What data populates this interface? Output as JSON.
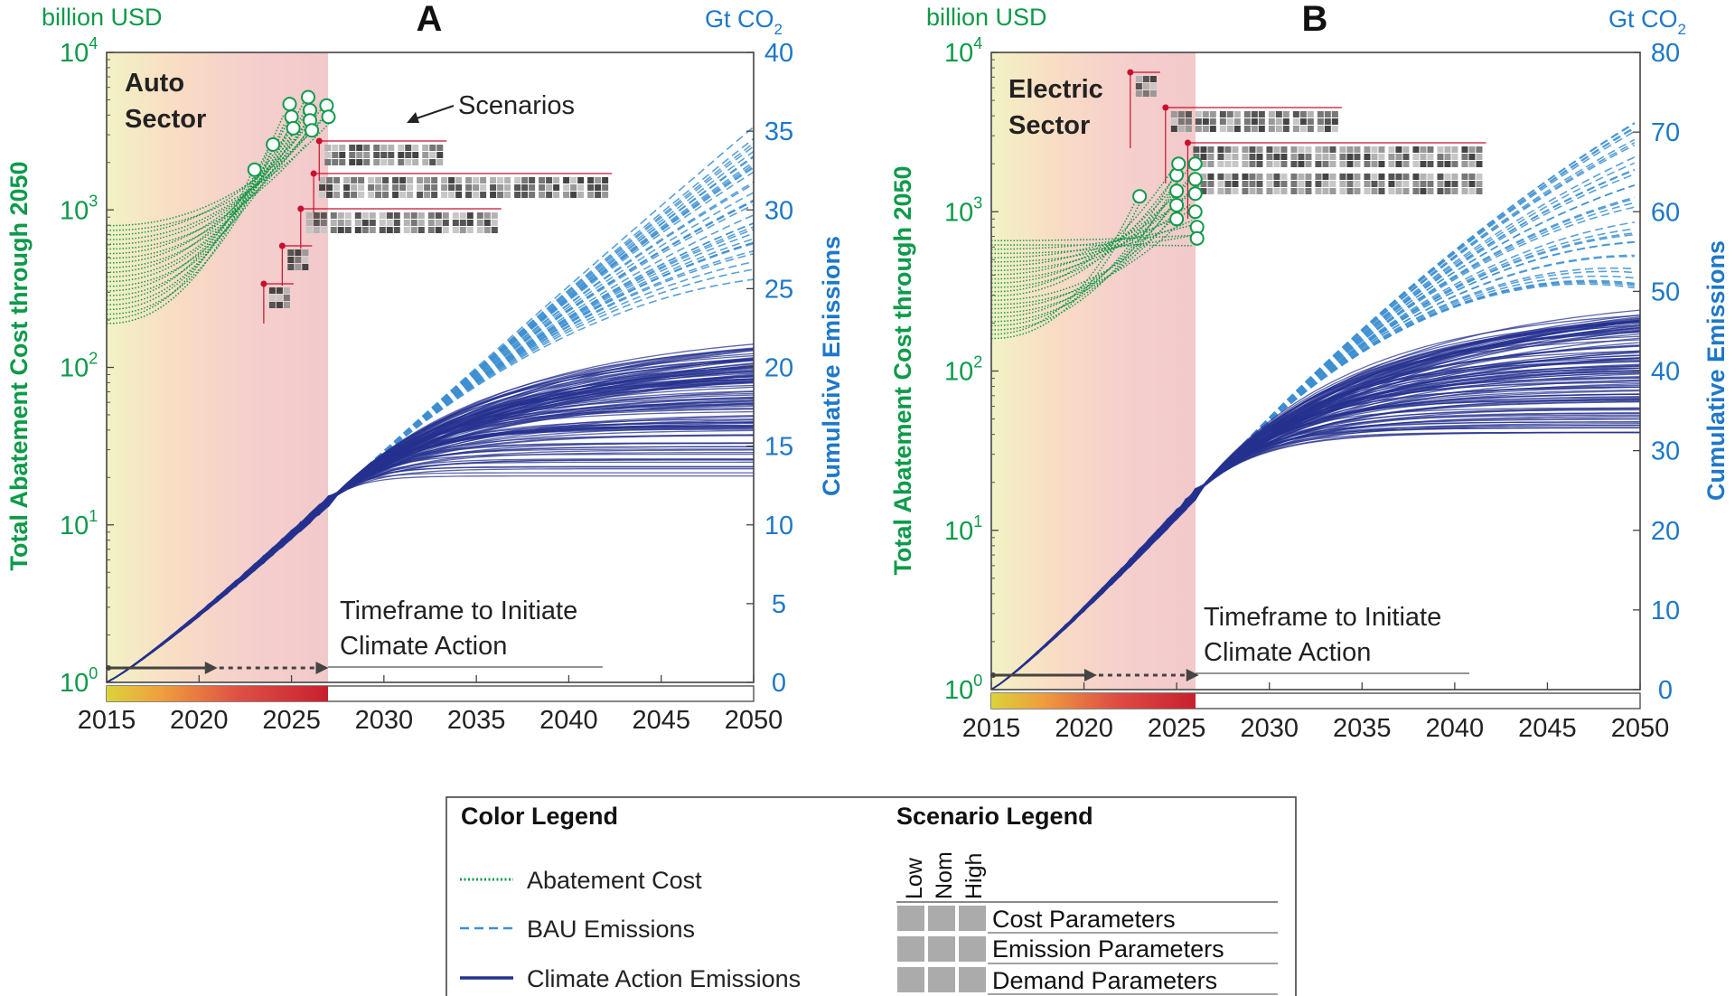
{
  "colors": {
    "cost": "#0e9a4a",
    "bau": "#3d8fd1",
    "action": "#25318f",
    "emis_axis": "#1f78c8",
    "marker": "#c8102e",
    "timeframe_bar": "#c8102e"
  },
  "chart_data": [
    {
      "type": "line",
      "panel": "A",
      "sector_title": [
        "Auto",
        "Sector"
      ],
      "left_unit": "billion USD",
      "left_ylabel": "Total Abatement Cost through 2050",
      "left_scale": "log",
      "left_ylim": [
        1,
        10000
      ],
      "left_ticks": [
        {
          "base": "10",
          "exp": "0"
        },
        {
          "base": "10",
          "exp": "1"
        },
        {
          "base": "10",
          "exp": "2"
        },
        {
          "base": "10",
          "exp": "3"
        },
        {
          "base": "10",
          "exp": "4"
        }
      ],
      "right_unit": "Gt CO",
      "right_unit_sub": "2",
      "right_ylabel": "Cumulative Emissions",
      "right_ylim": [
        0,
        40
      ],
      "right_ticks": [
        "0",
        "5",
        "10",
        "15",
        "20",
        "25",
        "30",
        "35",
        "40"
      ],
      "xlim": [
        2015,
        2050
      ],
      "x_ticks": [
        "2015",
        "2020",
        "2025",
        "2030",
        "2035",
        "2040",
        "2045",
        "2050"
      ],
      "timeframe_end_year": 2027,
      "timeframe_mid_year": 2021,
      "timeframe_label": [
        "Timeframe to Initiate",
        "Climate Action"
      ],
      "scenarios_label": "Scenarios",
      "emissions_at_timeframe_end": 11.5,
      "bau_2050_range": [
        25.5,
        36.5
      ],
      "action_2050_range": [
        13,
        22.5
      ],
      "abatement_cost_2015_range": [
        190,
        850
      ],
      "abatement_cost_markers": [
        {
          "year": 2023.0,
          "cost": 1800
        },
        {
          "year": 2024.0,
          "cost": 2600
        },
        {
          "year": 2024.9,
          "cost": 4700
        },
        {
          "year": 2025.0,
          "cost": 3900
        },
        {
          "year": 2025.1,
          "cost": 3300
        },
        {
          "year": 2025.9,
          "cost": 5200
        },
        {
          "year": 2026.0,
          "cost": 4300
        },
        {
          "year": 2026.0,
          "cost": 3700
        },
        {
          "year": 2026.1,
          "cost": 3200
        },
        {
          "year": 2026.9,
          "cost": 4600
        },
        {
          "year": 2027.0,
          "cost": 3900
        }
      ]
    },
    {
      "type": "line",
      "panel": "B",
      "sector_title": [
        "Electric",
        "Sector"
      ],
      "left_unit": "billion USD",
      "left_ylabel": "Total Abatement Cost through 2050",
      "left_scale": "log",
      "left_ylim": [
        1,
        10000
      ],
      "left_ticks": [
        {
          "base": "10",
          "exp": "0"
        },
        {
          "base": "10",
          "exp": "1"
        },
        {
          "base": "10",
          "exp": "2"
        },
        {
          "base": "10",
          "exp": "3"
        },
        {
          "base": "10",
          "exp": "4"
        }
      ],
      "right_unit": "Gt CO",
      "right_unit_sub": "2",
      "right_ylabel": "Cumulative Emissions",
      "right_ylim": [
        0,
        80
      ],
      "right_ticks": [
        "0",
        "10",
        "20",
        "30",
        "40",
        "50",
        "60",
        "70",
        "80"
      ],
      "xlim": [
        2015,
        2050
      ],
      "x_ticks": [
        "2015",
        "2020",
        "2025",
        "2030",
        "2035",
        "2040",
        "2045",
        "2050"
      ],
      "timeframe_end_year": 2026.2,
      "timeframe_mid_year": 2020.7,
      "timeframe_label": [
        "Timeframe to Initiate",
        "Climate Action"
      ],
      "emissions_at_timeframe_end": 25,
      "bau_2050_range": [
        50,
        72
      ],
      "action_2050_range": [
        32,
        50
      ],
      "abatement_cost_2015_range": [
        160,
        700
      ],
      "abatement_cost_markers": [
        {
          "year": 2023.0,
          "cost": 1250
        },
        {
          "year": 2025.0,
          "cost": 1700
        },
        {
          "year": 2025.0,
          "cost": 1350
        },
        {
          "year": 2025.0,
          "cost": 1100
        },
        {
          "year": 2025.0,
          "cost": 900
        },
        {
          "year": 2025.1,
          "cost": 2000
        },
        {
          "year": 2026.0,
          "cost": 2000
        },
        {
          "year": 2026.0,
          "cost": 1600
        },
        {
          "year": 2026.0,
          "cost": 1300
        },
        {
          "year": 2026.0,
          "cost": 1000
        },
        {
          "year": 2026.1,
          "cost": 800
        },
        {
          "year": 2026.1,
          "cost": 680
        }
      ]
    }
  ],
  "legend": {
    "color_title": "Color Legend",
    "scenario_title": "Scenario Legend",
    "items": [
      "Abatement Cost",
      "BAU Emissions",
      "Climate Action Emissions"
    ],
    "levels": [
      "Low",
      "Nom",
      "High"
    ],
    "parameters": [
      "Cost Parameters",
      "Emission Parameters",
      "Demand Parameters"
    ]
  }
}
